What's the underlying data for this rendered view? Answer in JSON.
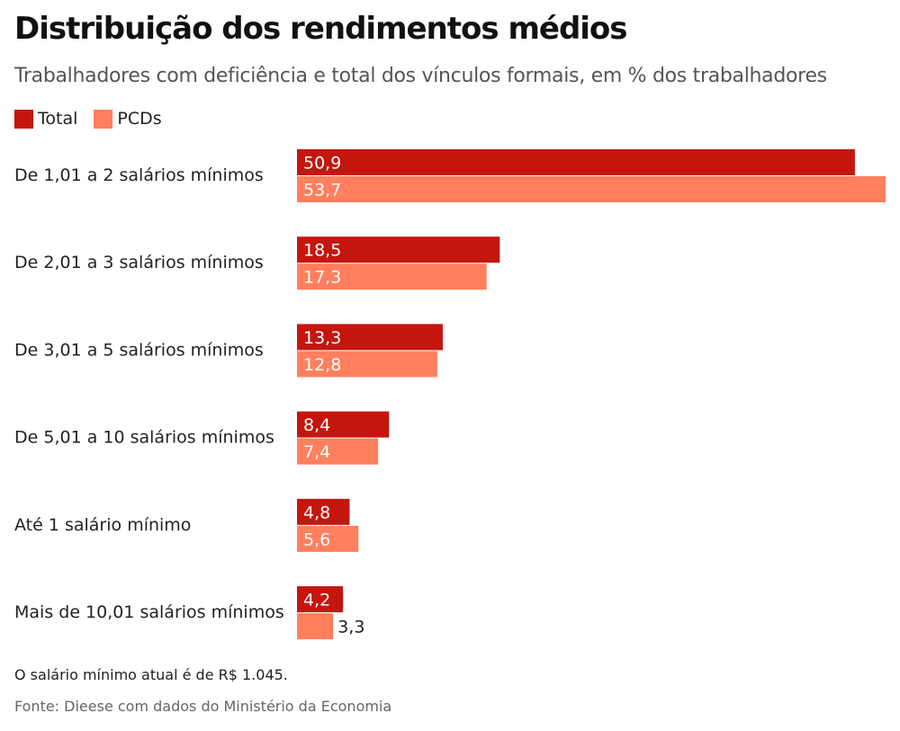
{
  "title": "Distribuição dos rendimentos médios",
  "subtitle": "Trabalhadores com deficiência e total dos vínculos formais, em % dos trabalhadores",
  "legend": [
    {
      "label": "Total",
      "color": "#c4160f"
    },
    {
      "label": "PCDs",
      "color": "#ff7f5e"
    }
  ],
  "note": "O salário mínimo atual é de R$ 1.045.",
  "source": "Fonte: Dieese com dados do Ministério da Economia",
  "chart_data": {
    "type": "bar",
    "orientation": "horizontal",
    "title": "Distribuição dos rendimentos médios",
    "categories": [
      "De 1,01 a 2 salários mínimos",
      "De 2,01 a 3 salários mínimos",
      "De 3,01 a 5 salários mínimos",
      "De 5,01 a 10 salários mínimos",
      "Até 1 salário mínimo",
      "Mais de 10,01 salários mínimos"
    ],
    "series": [
      {
        "name": "Total",
        "color": "#c4160f",
        "values": [
          50.9,
          18.5,
          13.3,
          8.4,
          4.8,
          4.2
        ],
        "labels": [
          "50,9",
          "18,5",
          "13,3",
          "8,4",
          "4,8",
          "4,2"
        ]
      },
      {
        "name": "PCDs",
        "color": "#ff7f5e",
        "values": [
          53.7,
          17.3,
          12.8,
          7.4,
          5.6,
          3.3
        ],
        "labels": [
          "53,7",
          "17,3",
          "12,8",
          "7,4",
          "5,6",
          "3,3"
        ]
      }
    ],
    "xlim": [
      0,
      53.7
    ],
    "grid": false,
    "legend_position": "top-left"
  }
}
